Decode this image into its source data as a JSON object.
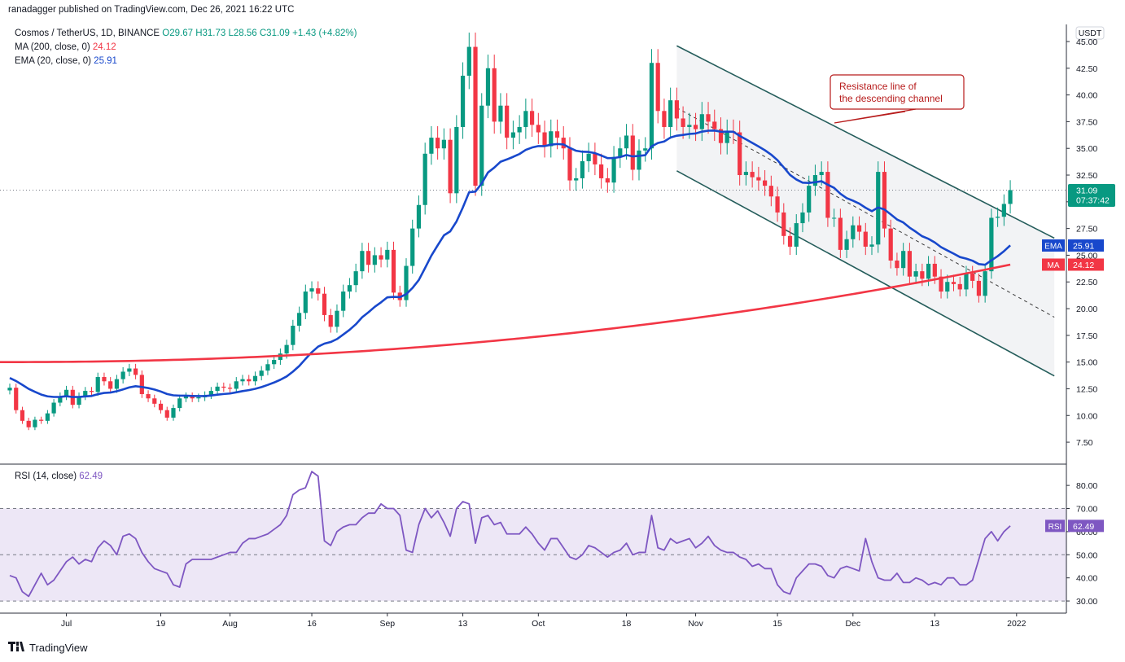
{
  "header": {
    "published": "ranadagger published on TradingView.com, Dec 26, 2021 16:22 UTC"
  },
  "legend": {
    "symbol": "Cosmos / TetherUS, 1D, BINANCE",
    "ohlc": "O29.67  H31.73  L28.56  C31.09",
    "change": "+1.43 (+4.82%)",
    "ma_label": "MA (200, close, 0)",
    "ma_value": "24.12",
    "ema_label": "EMA (20, close, 0)",
    "ema_value": "25.91",
    "rsi_label": "RSI (14, close)",
    "rsi_value": "62.49"
  },
  "footer": {
    "brand": "TradingView",
    "logo": "tv-logo-icon"
  },
  "colors": {
    "up": "#089981",
    "down": "#f23645",
    "ema": "#1848cc",
    "ma": "#f23645",
    "channel": "#255d5b",
    "channel_fill": "#e8eaed",
    "rsi_line": "#7e57c2",
    "rsi_band": "#ede7f6",
    "annotation_border": "#b71c1c",
    "annotation_text": "#b71c1c"
  },
  "chart_data": [
    {
      "type": "candlestick",
      "title": "Cosmos / TetherUS, 1D, BINANCE",
      "currency_label": "USDT",
      "ylim": [
        5.6,
        46.6
      ],
      "yticks": [
        7.5,
        10,
        12.5,
        15,
        17.5,
        20,
        22.5,
        25,
        27.5,
        30,
        32.5,
        35,
        37.5,
        40,
        42.5,
        45
      ],
      "ytick_labels": [
        "7.50",
        "10.00",
        "12.50",
        "15.00",
        "17.50",
        "20.00",
        "22.50",
        "25.00",
        "27.50",
        "30.00",
        "32.50",
        "35.00",
        "37.50",
        "40.00",
        "42.50",
        "45.00"
      ],
      "xtick_labels": [
        "Jul",
        "19",
        "Aug",
        "16",
        "Sep",
        "13",
        "Oct",
        "18",
        "Nov",
        "15",
        "Dec",
        "13",
        "2022"
      ],
      "xtick_index": [
        9,
        24,
        35,
        48,
        60,
        72,
        84,
        98,
        109,
        122,
        134,
        147,
        160
      ],
      "last_price": {
        "value": 31.09,
        "label": "31.09",
        "countdown": "07:37:42"
      },
      "ema_tag": {
        "label": "EMA",
        "value": "25.91",
        "y": 25.91
      },
      "ma_tag": {
        "label": "MA",
        "value": "24.12",
        "y": 24.12
      },
      "closes": [
        12.6,
        10.5,
        9.5,
        8.9,
        9.6,
        9.5,
        10.2,
        11.2,
        11.8,
        12.4,
        11.0,
        11.8,
        12.3,
        12.2,
        13.6,
        13.2,
        12.5,
        13.4,
        14.1,
        14.4,
        13.8,
        12.0,
        11.6,
        11.1,
        10.5,
        9.8,
        10.7,
        11.6,
        11.8,
        11.6,
        11.7,
        11.9,
        12.3,
        12.7,
        12.6,
        12.5,
        13.2,
        13.4,
        13.2,
        13.7,
        14.2,
        14.8,
        15.2,
        15.8,
        16.6,
        18.4,
        19.6,
        21.6,
        21.9,
        21.4,
        19.4,
        18.3,
        19.8,
        21.6,
        22.2,
        23.5,
        25.4,
        24.1,
        25.0,
        24.6,
        25.5,
        21.5,
        20.8,
        24.0,
        27.5,
        29.7,
        34.5,
        36.0,
        35.0,
        35.8,
        30.8,
        37.0,
        41.8,
        44.5,
        31.5,
        39.0,
        42.5,
        37.5,
        39.0,
        36.0,
        36.5,
        37.0,
        38.5,
        37.2,
        36.5,
        35.2,
        36.6,
        36.0,
        35.0,
        32.0,
        32.2,
        33.8,
        34.5,
        33.5,
        32.2,
        31.8,
        34.2,
        35.0,
        36.2,
        33.0,
        34.8,
        35.0,
        43.0,
        38.5,
        37.0,
        39.5,
        37.8,
        37.0,
        37.2,
        36.8,
        38.2,
        37.5,
        36.8,
        35.5,
        36.6,
        36.5,
        32.5,
        32.8,
        32.3,
        32.0,
        31.5,
        30.5,
        29.0,
        26.8,
        25.8,
        28.0,
        29.0,
        31.5,
        32.5,
        32.8,
        28.5,
        28.5,
        25.5,
        26.5,
        27.8,
        27.2,
        25.8,
        26.0,
        32.8,
        27.5,
        24.5,
        23.8,
        25.4,
        23.0,
        23.5,
        22.8,
        24.2,
        23.0,
        21.6,
        22.5,
        22.3,
        21.8,
        23.3,
        22.6,
        21.2,
        23.5,
        28.5,
        28.6,
        29.8,
        31.09
      ],
      "series": [
        {
          "name": "EMA",
          "label": "EMA (20, close, 0)",
          "last": 25.91
        },
        {
          "name": "MA",
          "label": "MA (200, close, 0)",
          "last": 24.12
        }
      ],
      "annotations": [
        {
          "text": "Resistance line of the descending channel",
          "kind": "callout"
        }
      ]
    },
    {
      "type": "line",
      "title": "RSI (14, close)",
      "ylim": [
        26.5,
        88.5
      ],
      "yticks": [
        30,
        40,
        50,
        60,
        70,
        80
      ],
      "ytick_labels": [
        "30.00",
        "40.00",
        "50.00",
        "60.00",
        "70.00",
        "80.00"
      ],
      "band": [
        30,
        70
      ],
      "midline": 50,
      "rsi_tag": {
        "label": "RSI",
        "value": "62.49",
        "y": 62.49
      },
      "values": [
        41,
        40,
        34,
        32,
        37,
        42,
        37,
        39,
        43,
        47,
        49,
        46,
        48,
        47,
        53,
        56,
        54,
        50,
        58,
        59,
        57,
        51,
        47,
        44,
        43,
        42,
        37,
        36,
        46,
        48,
        48,
        48,
        48,
        49,
        50,
        51,
        51,
        55,
        57,
        57,
        58,
        59,
        61,
        63,
        67,
        76,
        78,
        79,
        86,
        84,
        56,
        54,
        60,
        62,
        63,
        63,
        66,
        68,
        68,
        72,
        70,
        70,
        67,
        52,
        51,
        63,
        70,
        66,
        69,
        64,
        58,
        70,
        73,
        72,
        55,
        66,
        67,
        63,
        64,
        59,
        59,
        59,
        62,
        59,
        55,
        52,
        57,
        57,
        53,
        49,
        48,
        50,
        54,
        53,
        51,
        49,
        51,
        52,
        55,
        50,
        51,
        51,
        67,
        53,
        52,
        57,
        55,
        56,
        57,
        53,
        55,
        58,
        54,
        52,
        51,
        51,
        49,
        48,
        45,
        46,
        44,
        44,
        37,
        34,
        33,
        40,
        43,
        46,
        46,
        45,
        41,
        40,
        44,
        45,
        44,
        43,
        57,
        47,
        40,
        39,
        39,
        42,
        38,
        38,
        40,
        39,
        37,
        38,
        37,
        40,
        40,
        37,
        37,
        39,
        48,
        57,
        60,
        56,
        60,
        62.49
      ]
    }
  ]
}
